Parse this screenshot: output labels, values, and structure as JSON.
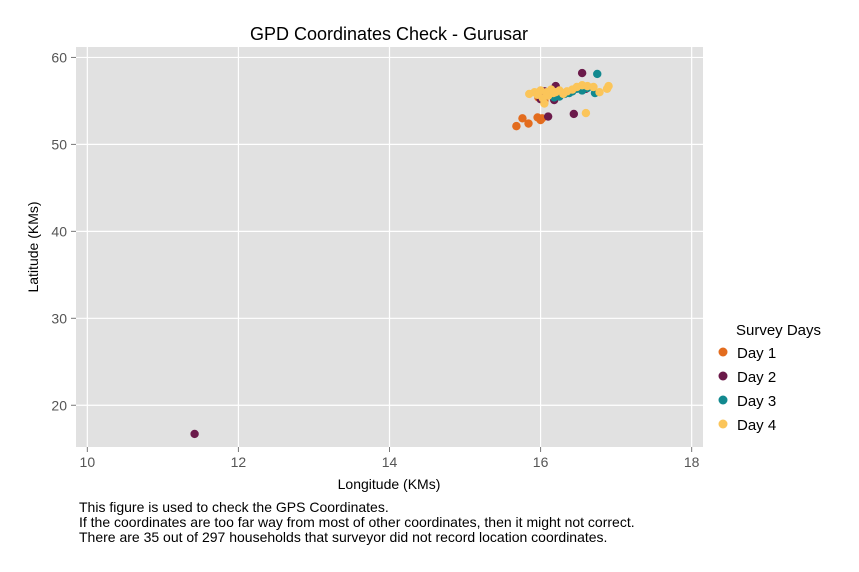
{
  "chart_data": {
    "type": "scatter",
    "title": "GPD Coordinates Check -  Gurusar",
    "xlabel": "Longitude (KMs)",
    "ylabel": "Latitude (KMs)",
    "xlim": [
      9.85,
      18.15
    ],
    "ylim": [
      15.2,
      61.2
    ],
    "x_ticks": [
      10,
      12,
      14,
      16,
      18
    ],
    "y_ticks": [
      20,
      30,
      40,
      50,
      60
    ],
    "grid": true,
    "legend_title": "Survey Days",
    "legend_position": "right",
    "series": [
      {
        "name": "Day 1",
        "color": "#E36C1E",
        "points": [
          [
            15.68,
            52.1
          ],
          [
            15.76,
            53.0
          ],
          [
            15.84,
            52.4
          ],
          [
            15.96,
            53.1
          ],
          [
            16.0,
            52.8
          ],
          [
            16.02,
            53.0
          ],
          [
            15.97,
            55.4
          ],
          [
            16.05,
            55.0
          ],
          [
            16.1,
            56.0
          ]
        ]
      },
      {
        "name": "Day 2",
        "color": "#6B1A4A",
        "points": [
          [
            11.42,
            16.7
          ],
          [
            15.95,
            55.9
          ],
          [
            16.0,
            55.2
          ],
          [
            16.05,
            56.1
          ],
          [
            16.08,
            55.6
          ],
          [
            16.1,
            53.2
          ],
          [
            16.14,
            55.9
          ],
          [
            16.18,
            55.1
          ],
          [
            16.2,
            56.7
          ],
          [
            16.22,
            55.5
          ],
          [
            16.25,
            56.0
          ],
          [
            16.44,
            53.5
          ],
          [
            16.55,
            58.2
          ],
          [
            16.6,
            56.4
          ]
        ]
      },
      {
        "name": "Day 3",
        "color": "#12898F",
        "points": [
          [
            16.12,
            55.7
          ],
          [
            16.18,
            55.4
          ],
          [
            16.25,
            55.5
          ],
          [
            16.32,
            55.8
          ],
          [
            16.38,
            55.9
          ],
          [
            16.42,
            56.1
          ],
          [
            16.48,
            56.4
          ],
          [
            16.55,
            56.2
          ],
          [
            16.62,
            56.5
          ],
          [
            16.72,
            55.9
          ],
          [
            16.75,
            58.1
          ]
        ]
      },
      {
        "name": "Day 4",
        "color": "#FBC55A",
        "points": [
          [
            15.85,
            55.8
          ],
          [
            15.92,
            56.0
          ],
          [
            15.96,
            55.7
          ],
          [
            16.0,
            56.2
          ],
          [
            16.03,
            55.3
          ],
          [
            16.05,
            54.7
          ],
          [
            16.08,
            56.0
          ],
          [
            16.1,
            55.6
          ],
          [
            16.14,
            56.3
          ],
          [
            16.17,
            55.9
          ],
          [
            16.2,
            56.0
          ],
          [
            16.25,
            56.2
          ],
          [
            16.3,
            55.8
          ],
          [
            16.35,
            56.1
          ],
          [
            16.42,
            56.3
          ],
          [
            16.48,
            56.6
          ],
          [
            16.55,
            56.8
          ],
          [
            16.62,
            56.7
          ],
          [
            16.7,
            56.6
          ],
          [
            16.78,
            56.0
          ],
          [
            16.6,
            53.6
          ],
          [
            16.88,
            56.4
          ],
          [
            16.9,
            56.7
          ]
        ]
      }
    ]
  },
  "notes": [
    "This figure is used to check the GPS Coordinates.",
    "If the coordinates are too far way from most of other coordinates, then it might not correct.",
    "There are 35 out of 297 households that surveyor did not record location coordinates."
  ]
}
